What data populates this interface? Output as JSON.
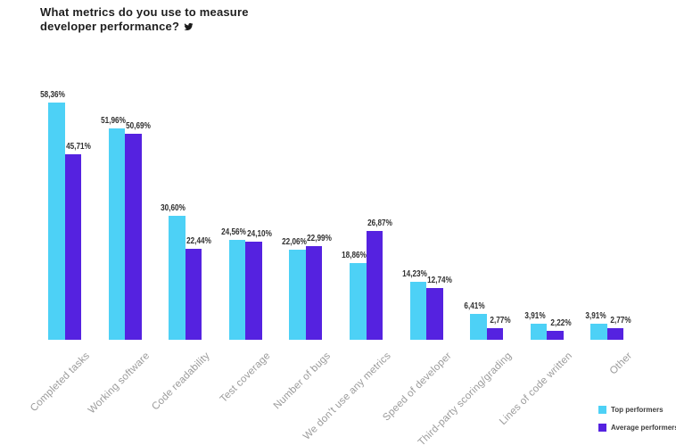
{
  "title": {
    "line1": "What metrics do you use to measure",
    "line2": "developer performance?"
  },
  "colors": {
    "background": "#ffffff",
    "title_text": "#1e1e1e",
    "top_performers": "#4DD1F6",
    "average_performers": "#5522E0",
    "value_label": "#303030",
    "category_label": "#9b9b9b",
    "legend_text": "#3d3d3d",
    "twitter_icon": "#1a1a1a"
  },
  "legend": {
    "items": [
      {
        "label": "Top performers",
        "color": "#4DD1F6"
      },
      {
        "label": "Average performers",
        "color": "#5522E0"
      }
    ]
  },
  "chart_data": {
    "type": "bar",
    "title": "What metrics do you use to measure developer performance?",
    "xlabel": "",
    "ylabel": "",
    "ylim": [
      0,
      60
    ],
    "grid": false,
    "legend_position": "bottom-right",
    "value_label_format": "comma-decimal-percent",
    "categories": [
      "Completed tasks",
      "Working software",
      "Code readability",
      "Test coverage",
      "Number of bugs",
      "We don't use any metrics",
      "Speed of developer",
      "Third-party scoring/grading",
      "Lines of code written",
      "Other"
    ],
    "series": [
      {
        "name": "Top performers",
        "color": "#4DD1F6",
        "values": [
          58.36,
          51.96,
          30.6,
          24.56,
          22.06,
          18.86,
          14.23,
          6.41,
          3.91,
          3.91
        ],
        "value_labels": [
          "58,36%",
          "51,96%",
          "30,60%",
          "24,56%",
          "22,06%",
          "18,86%",
          "14,23%",
          "6,41%",
          "3,91%",
          "3,91%"
        ]
      },
      {
        "name": "Average performers",
        "color": "#5522E0",
        "values": [
          45.71,
          50.69,
          22.44,
          24.1,
          22.99,
          26.87,
          12.74,
          2.77,
          2.22,
          2.77
        ],
        "value_labels": [
          "45,71%",
          "50,69%",
          "22,44%",
          "24,10%",
          "22,99%",
          "26,87%",
          "12,74%",
          "2,77%",
          "2,22%",
          "2,77%"
        ]
      }
    ]
  }
}
